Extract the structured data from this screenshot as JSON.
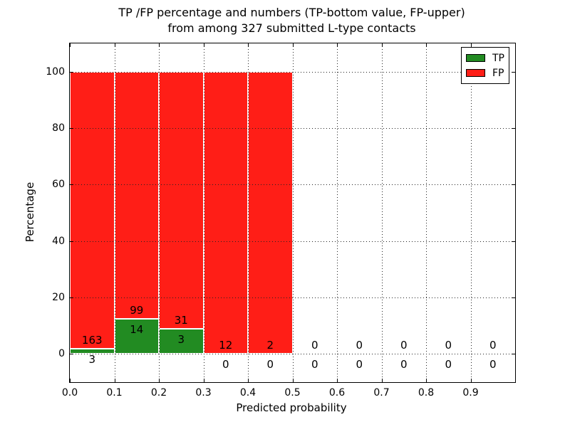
{
  "title": {
    "line1": "TP /FP percentage and numbers (TP-bottom value, FP-upper)",
    "line2": "from among 327 submitted L-type contacts"
  },
  "axes": {
    "xlabel": "Predicted probability",
    "ylabel": "Percentage"
  },
  "chart_data": {
    "type": "bar",
    "stacked": true,
    "title": "TP /FP percentage and numbers (TP-bottom value, FP-upper)\nfrom among 327 submitted L-type contacts",
    "xlabel": "Predicted probability",
    "ylabel": "Percentage",
    "xlim": [
      0.0,
      1.0
    ],
    "ylim": [
      -10,
      110
    ],
    "xtick_values": [
      0.0,
      0.1,
      0.2,
      0.3,
      0.4,
      0.5,
      0.6,
      0.7,
      0.8,
      0.9
    ],
    "xtick_labels": [
      "0.0",
      "0.1",
      "0.2",
      "0.3",
      "0.4",
      "0.5",
      "0.6",
      "0.7",
      "0.8",
      "0.9"
    ],
    "ytick_values": [
      0,
      20,
      40,
      60,
      80,
      100
    ],
    "ytick_labels": [
      "0",
      "20",
      "40",
      "60",
      "80",
      "100"
    ],
    "grid": {
      "visible": true,
      "style": "dotted",
      "drawn_on_top_of_bars": true
    },
    "colors": {
      "tp": "#228b22",
      "fp": "#ff1e17",
      "bar_edge": "#ffffff"
    },
    "legend": {
      "position": "upper right",
      "entries": [
        {
          "label": "TP",
          "color_key": "tp"
        },
        {
          "label": "FP",
          "color_key": "fp"
        }
      ]
    },
    "total_submitted": 327,
    "bins": [
      {
        "range": [
          0.0,
          0.1
        ],
        "tp": 3,
        "fp": 163,
        "tp_pct": 1.81,
        "fp_pct": 98.19
      },
      {
        "range": [
          0.1,
          0.2
        ],
        "tp": 14,
        "fp": 99,
        "tp_pct": 12.39,
        "fp_pct": 87.61
      },
      {
        "range": [
          0.2,
          0.3
        ],
        "tp": 3,
        "fp": 31,
        "tp_pct": 8.82,
        "fp_pct": 91.18
      },
      {
        "range": [
          0.3,
          0.4
        ],
        "tp": 0,
        "fp": 12,
        "tp_pct": 0.0,
        "fp_pct": 100.0
      },
      {
        "range": [
          0.4,
          0.5
        ],
        "tp": 0,
        "fp": 2,
        "tp_pct": 0.0,
        "fp_pct": 100.0
      },
      {
        "range": [
          0.5,
          0.6
        ],
        "tp": 0,
        "fp": 0,
        "tp_pct": 0.0,
        "fp_pct": 0.0
      },
      {
        "range": [
          0.6,
          0.7
        ],
        "tp": 0,
        "fp": 0,
        "tp_pct": 0.0,
        "fp_pct": 0.0
      },
      {
        "range": [
          0.7,
          0.8
        ],
        "tp": 0,
        "fp": 0,
        "tp_pct": 0.0,
        "fp_pct": 0.0
      },
      {
        "range": [
          0.8,
          0.9
        ],
        "tp": 0,
        "fp": 0,
        "tp_pct": 0.0,
        "fp_pct": 0.0
      },
      {
        "range": [
          0.9,
          1.0
        ],
        "tp": 0,
        "fp": 0,
        "tp_pct": 0.0,
        "fp_pct": 0.0
      }
    ]
  }
}
